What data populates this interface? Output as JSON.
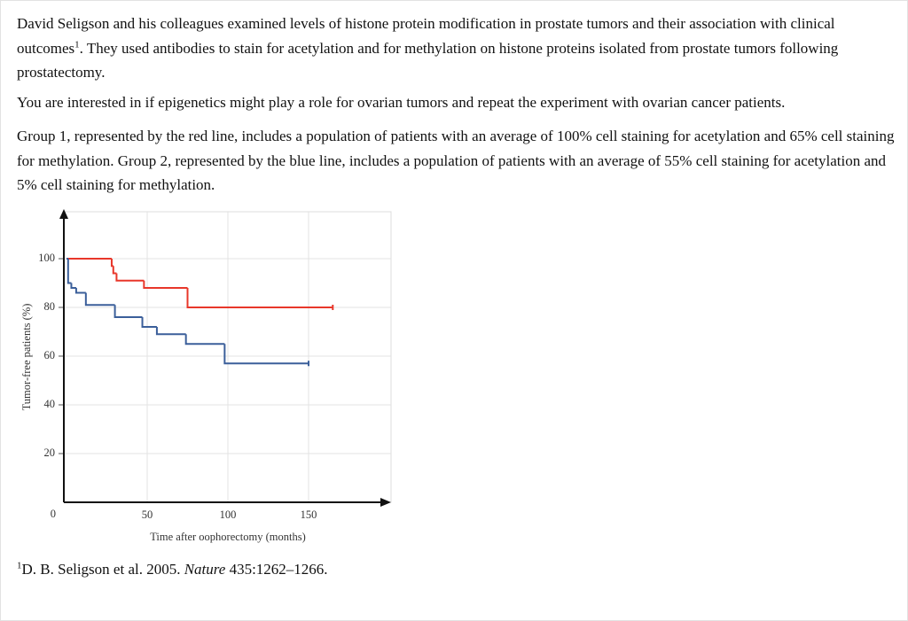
{
  "paragraphs": [
    {
      "text_before": "David Seligson and his colleagues examined levels of histone protein modification in prostate tumors and their association with clinical outcomes",
      "sup": "1",
      "text_after": ". They used antibodies to stain for acetylation and for methylation on histone proteins isolated from prostate tumors following prostatectomy."
    },
    {
      "text": "You are interested in if epigenetics might play a role for ovarian tumors and repeat the experiment with ovarian cancer patients."
    },
    {
      "text": "Group 1, represented by the red line, includes a population of patients with an average of 100% cell staining for acetylation and 65% cell staining for methylation. Group 2, represented by the blue line, includes a population of patients with an average of 55% cell staining for acetylation and 5% cell staining for methylation."
    }
  ],
  "chart_data": {
    "type": "step",
    "x_label": "Time after oophorectomy (months)",
    "y_label": "Tumor-free patients (%)",
    "xlim": [
      0,
      200
    ],
    "ylim": [
      0,
      120
    ],
    "xticks": [
      50,
      100,
      150
    ],
    "yticks": [
      0,
      20,
      40,
      60,
      80,
      100
    ],
    "grid": true,
    "series": [
      {
        "color": "#e8372a",
        "x": [
          0,
          28,
          29,
          31,
          48,
          75,
          165
        ],
        "values": [
          100,
          97,
          94,
          91,
          88,
          80,
          80
        ]
      },
      {
        "color": "#3b5f9a",
        "x": [
          0,
          1,
          3,
          6,
          12,
          30,
          47,
          56,
          74,
          98,
          150
        ],
        "values": [
          100,
          90,
          88,
          86,
          81,
          76,
          72,
          69,
          65,
          57,
          57
        ]
      }
    ]
  },
  "footnote": {
    "marker": "1",
    "text_before": "D. B. Seligson et al. 2005. ",
    "journal": "Nature",
    "text_after": " 435:1262–1266."
  }
}
